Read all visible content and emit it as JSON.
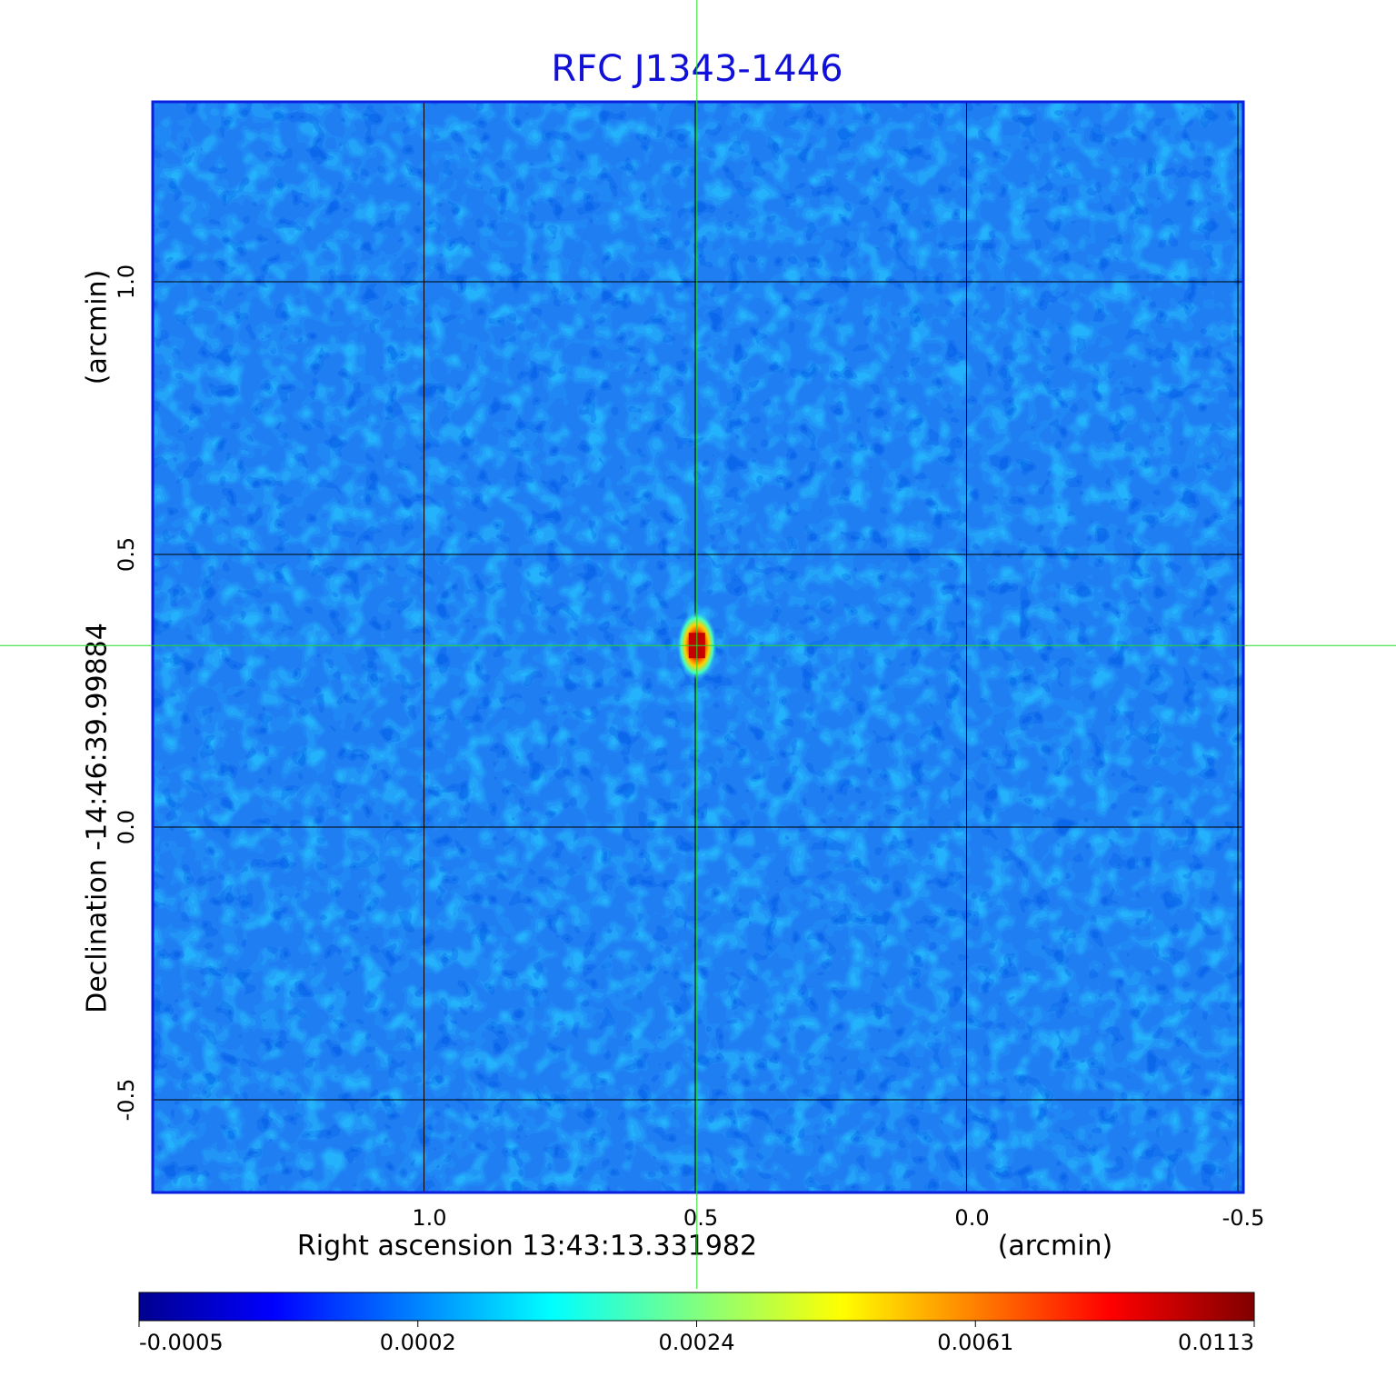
{
  "chart_data": {
    "type": "image",
    "title": "RFC J1343-1446",
    "xlabel": "Right ascension  13:43:13.331982",
    "xunit": "(arcmin)",
    "ylabel": "Declination  -14:46:39.99884",
    "yunit": "(arcmin)",
    "xlim": [
      1.5,
      -0.51
    ],
    "ylim": [
      -0.67,
      1.33
    ],
    "xticks": [
      {
        "value": 1,
        "label": "1.0"
      },
      0.5,
      {
        "value": 0,
        "label": "0.0"
      },
      -0.5
    ],
    "yticks": [
      -0.5,
      {
        "value": 0,
        "label": "0.0"
      },
      0.5,
      {
        "value": 1,
        "label": "1.0"
      }
    ],
    "grid": true,
    "crosshair": {
      "x": 0.497,
      "y": 0.333,
      "color": "#22dd22"
    },
    "colorbar_ticks": [
      -0.0005,
      0.0002,
      0.0024,
      0.0061,
      0.0113
    ]
  }
}
